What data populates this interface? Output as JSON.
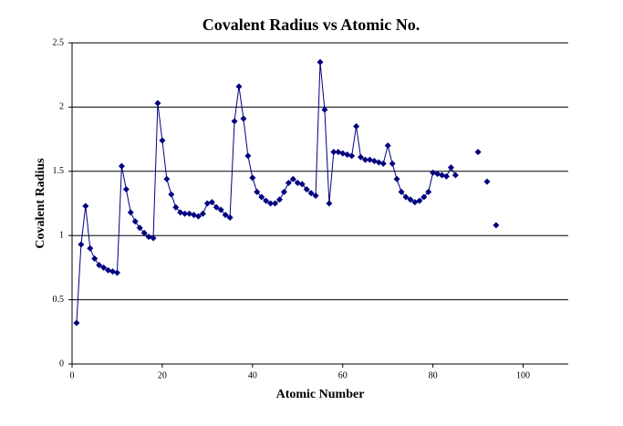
{
  "chart_data": {
    "type": "line",
    "title": "Covalent Radius vs Atomic No.",
    "x_label": "Atomic Number",
    "y_label": "Covalent Radius",
    "x": [
      1,
      2,
      3,
      4,
      5,
      6,
      7,
      8,
      9,
      10,
      11,
      12,
      13,
      14,
      15,
      16,
      17,
      18,
      19,
      20,
      21,
      22,
      23,
      24,
      25,
      26,
      27,
      28,
      29,
      30,
      31,
      32,
      33,
      34,
      35,
      36,
      37,
      38,
      39,
      40,
      41,
      42,
      43,
      44,
      45,
      46,
      47,
      48,
      49,
      50,
      51,
      52,
      53,
      54,
      55,
      56,
      57,
      58,
      59,
      60,
      61,
      62,
      63,
      64,
      65,
      66,
      67,
      68,
      69,
      70,
      71,
      72,
      73,
      74,
      75,
      76,
      77,
      78,
      79,
      80,
      81,
      82,
      83,
      84,
      85,
      86,
      87,
      88,
      89,
      90,
      91,
      92,
      93,
      94
    ],
    "values": [
      0.32,
      0.93,
      1.23,
      0.9,
      0.82,
      0.77,
      0.75,
      0.73,
      0.72,
      0.71,
      1.54,
      1.36,
      1.18,
      1.11,
      1.06,
      1.02,
      0.99,
      0.98,
      2.03,
      1.74,
      1.44,
      1.32,
      1.22,
      1.18,
      1.17,
      1.17,
      1.16,
      1.15,
      1.17,
      1.25,
      1.26,
      1.22,
      1.2,
      1.16,
      1.14,
      1.89,
      2.16,
      1.91,
      1.62,
      1.45,
      1.34,
      1.3,
      1.27,
      1.25,
      1.25,
      1.28,
      1.34,
      1.41,
      1.44,
      1.41,
      1.4,
      1.36,
      1.33,
      1.31,
      2.35,
      1.98,
      1.25,
      1.65,
      1.65,
      1.64,
      1.63,
      1.62,
      1.85,
      1.61,
      1.59,
      1.59,
      1.58,
      1.57,
      1.56,
      1.7,
      1.56,
      1.44,
      1.34,
      1.3,
      1.28,
      1.26,
      1.27,
      1.3,
      1.34,
      1.49,
      1.48,
      1.47,
      1.46,
      1.53,
      1.47,
      null,
      null,
      null,
      null,
      1.65,
      null,
      1.42,
      null,
      1.08
    ],
    "color": "#000080",
    "xlim": [
      0,
      110
    ],
    "xticks": [
      0,
      20,
      40,
      60,
      80,
      100
    ],
    "ylim": [
      0,
      2.5
    ],
    "yticks": [
      0,
      0.5,
      1,
      1.5,
      2,
      2.5
    ],
    "grid": true
  }
}
